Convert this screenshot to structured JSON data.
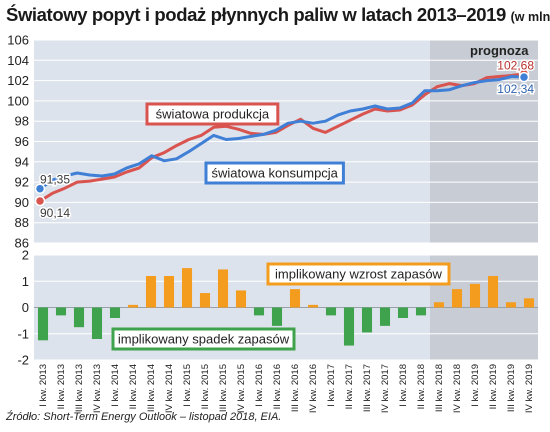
{
  "title": "Światowy popyt i podaż płynnych paliw w latach 2013–2019",
  "unit": "(w mln b/d)",
  "forecast_label": "prognoza",
  "source": "Źródło: Short-Term Energy Outlook – listopad 2018, EIA.",
  "colors": {
    "production": "#d9534f",
    "consumption": "#3f7fd6",
    "surplus": "#f39c1e",
    "deficit": "#3fa34d",
    "panel": "#dde3ec",
    "forecast_band": "#c8cdd5"
  },
  "chart_data": [
    {
      "type": "line",
      "ylim": [
        86,
        106
      ],
      "yticks": [
        86,
        88,
        90,
        92,
        94,
        96,
        98,
        100,
        102,
        104,
        106
      ],
      "series": [
        {
          "name": "światowa produkcja",
          "values": [
            90.14,
            90.9,
            91.4,
            92.0,
            92.1,
            92.3,
            92.5,
            93.0,
            93.4,
            94.4,
            94.9,
            95.6,
            96.2,
            96.6,
            97.4,
            97.5,
            97.2,
            96.8,
            96.7,
            96.9,
            97.6,
            98.2,
            97.3,
            96.9,
            97.5,
            98.1,
            98.7,
            99.2,
            99.0,
            99.1,
            99.6,
            100.6,
            101.4,
            101.7,
            101.5,
            101.7,
            102.3,
            102.4,
            102.5,
            102.68
          ]
        },
        {
          "name": "światowa konsumpcja",
          "values": [
            91.35,
            92.2,
            92.6,
            92.9,
            92.7,
            92.6,
            92.8,
            93.4,
            93.8,
            94.6,
            94.1,
            94.3,
            95.0,
            95.8,
            96.6,
            96.2,
            96.3,
            96.5,
            96.7,
            97.1,
            97.8,
            98.0,
            97.8,
            98.0,
            98.6,
            99.0,
            99.2,
            99.5,
            99.2,
            99.3,
            99.8,
            101.0,
            101.0,
            101.1,
            101.5,
            101.8,
            102.0,
            102.1,
            102.4,
            102.34
          ]
        }
      ],
      "annotations": {
        "start_production": "90,14",
        "start_consumption": "91,35",
        "end_production": "102,68",
        "end_consumption": "102,34"
      }
    },
    {
      "type": "bar",
      "ylim": [
        -2,
        2
      ],
      "yticks": [
        -2,
        -1,
        0,
        1,
        2
      ],
      "categories": [
        "I kw. 2013",
        "II kw. 2013",
        "III kw. 2013",
        "IV kw. 2013",
        "I kw. 2014",
        "II kw. 2014",
        "III kw. 2014",
        "IV kw. 2014",
        "I kw. 2015",
        "II kw. 2015",
        "III kw. 2015",
        "IV kw. 2015",
        "I kw. 2016",
        "II kw. 2016",
        "III kw. 2016",
        "IV kw. 2016",
        "I kw. 2017",
        "II kw. 2017",
        "III kw. 2017",
        "IV kw. 2017",
        "I kw. 2018",
        "II kw. 2018",
        "III kw. 2018",
        "IV kw. 2018",
        "I kw. 2019",
        "II kw. 2019",
        "III kw. 2019",
        "IV kw. 2019"
      ],
      "values": [
        -1.25,
        -0.3,
        -0.75,
        -1.2,
        -0.4,
        0.1,
        1.2,
        1.2,
        1.5,
        0.55,
        1.45,
        0.65,
        -0.3,
        -0.7,
        0.7,
        0.1,
        -0.3,
        -1.45,
        -0.95,
        -0.7,
        -0.4,
        -0.3,
        0.2,
        0.7,
        0.9,
        1.2,
        0.2,
        0.35
      ],
      "surplus_label": "implikowany wzrost zapasów",
      "deficit_label": "implikowany spadek zapasów"
    }
  ]
}
